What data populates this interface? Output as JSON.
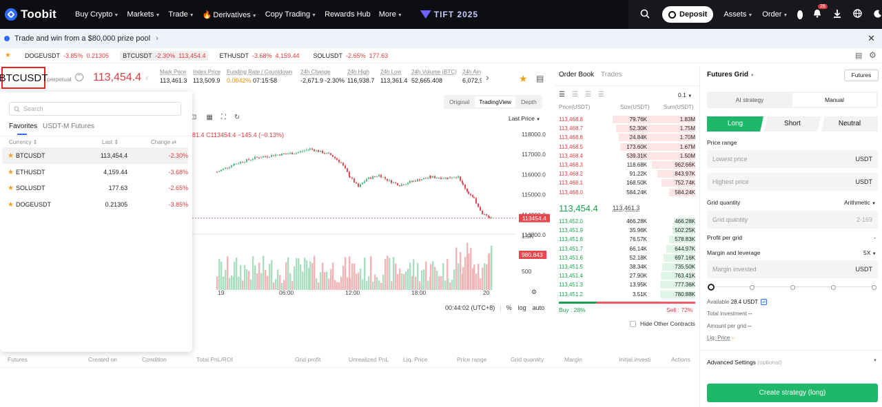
{
  "nav": {
    "logo": "Toobit",
    "items": [
      "Buy Crypto",
      "Markets",
      "Trade",
      "Derivatives",
      "Copy Trading",
      "Rewards Hub",
      "More"
    ],
    "event": "TIFT 2025",
    "deposit": "Deposit",
    "assets": "Assets",
    "order": "Order",
    "notif_count": "26"
  },
  "banner": {
    "text": "Trade and win from a $80,000 prize pool"
  },
  "ticker": [
    {
      "sym": "DOGEUSDT",
      "chg": "-3.85%",
      "price": "0.21305"
    },
    {
      "sym": "BTCUSDT",
      "chg": "-2.30%",
      "price": "113,454.4"
    },
    {
      "sym": "ETHUSDT",
      "chg": "-3.68%",
      "price": "4,159.44"
    },
    {
      "sym": "SOLUSDT",
      "chg": "-2.65%",
      "price": "177.63"
    }
  ],
  "symbol": {
    "name": "BTCUSDT",
    "kind": "perpetual",
    "price": "113,454.4",
    "stats": [
      {
        "label": "Mark Price",
        "value": "113,461.3"
      },
      {
        "label": "Index Price",
        "value": "113,509.9"
      },
      {
        "label": "Funding Rate / Countdown",
        "value": "0.0042%",
        "value2": "07:15:58"
      },
      {
        "label": "24h Change",
        "value": "-2,671.9 -2.30%"
      },
      {
        "label": "24h High",
        "value": "116,938.7"
      },
      {
        "label": "24h Low",
        "value": "113,361.4"
      },
      {
        "label": "24h Volume (BTC)",
        "value": "52,665.408"
      },
      {
        "label": "24h Am",
        "value": "6,072,9"
      }
    ]
  },
  "dropdown": {
    "placeholder": "Search",
    "tabs": [
      "Favorites",
      "USDT-M Futures"
    ],
    "headers": {
      "currency": "Currency",
      "last": "Last",
      "change": "Change"
    },
    "rows": [
      {
        "sym": "BTCUSDT",
        "last": "113,454.4",
        "chg": "-2.30%"
      },
      {
        "sym": "ETHUSDT",
        "last": "4,159.44",
        "chg": "-3.68%"
      },
      {
        "sym": "SOLUSDT",
        "last": "177.63",
        "chg": "-2.65%"
      },
      {
        "sym": "DOGEUSDT",
        "last": "0.21305",
        "chg": "-3.85%"
      }
    ]
  },
  "chart": {
    "views": [
      "Original",
      "TradingView",
      "Depth"
    ],
    "active_view": "TradingView",
    "price_type": "Last Price",
    "ohlc_text": "81.4  C113454.4  −145.4 (−0.13%)",
    "y_ticks": [
      "118000.0",
      "117000.0",
      "116000.0",
      "115000.0",
      "114000.0",
      "113000.0"
    ],
    "last_tag": "113454.4",
    "vol_ticks": [
      "1.5K",
      "500"
    ],
    "vol_tag": "980.843",
    "x_ticks": [
      "19",
      "06:00",
      "12:00",
      "18:00",
      "20"
    ],
    "clock": "00:44:02 (UTC+8)",
    "opts": [
      "%",
      "log",
      "auto"
    ],
    "hide_other": "Hide Other Contracts"
  },
  "orderbook": {
    "tabs": [
      "Order Book",
      "Trades"
    ],
    "tick": "0.1",
    "headers": {
      "price": "Price(USDT)",
      "size": "Size(USDT)",
      "sum": "Sum(USDT)"
    },
    "asks": [
      {
        "p": "113,468.8",
        "s": "79.76K",
        "t": "1.83M"
      },
      {
        "p": "113,468.7",
        "s": "52.30K",
        "t": "1.75M"
      },
      {
        "p": "113,468.6",
        "s": "24.84K",
        "t": "1.70M"
      },
      {
        "p": "113,468.5",
        "s": "173.60K",
        "t": "1.67M"
      },
      {
        "p": "113,468.4",
        "s": "539.31K",
        "t": "1.50M"
      },
      {
        "p": "113,468.3",
        "s": "118.68K",
        "t": "962.66K"
      },
      {
        "p": "113,468.2",
        "s": "91.22K",
        "t": "843.97K"
      },
      {
        "p": "113,468.1",
        "s": "168.50K",
        "t": "752.74K"
      },
      {
        "p": "113,468.0",
        "s": "584.24K",
        "t": "584.24K"
      }
    ],
    "mid": "113,454.4",
    "mark": "113,461.3",
    "bids": [
      {
        "p": "113,452.0",
        "s": "466.28K",
        "t": "466.28K"
      },
      {
        "p": "113,451.9",
        "s": "35.96K",
        "t": "502.25K"
      },
      {
        "p": "113,451.8",
        "s": "76.57K",
        "t": "578.83K"
      },
      {
        "p": "113,451.7",
        "s": "66.14K",
        "t": "644.97K"
      },
      {
        "p": "113,451.6",
        "s": "52.18K",
        "t": "697.16K"
      },
      {
        "p": "113,451.5",
        "s": "38.34K",
        "t": "735.50K"
      },
      {
        "p": "113,451.4",
        "s": "27.90K",
        "t": "763.41K"
      },
      {
        "p": "113,451.3",
        "s": "13.95K",
        "t": "777.36K"
      },
      {
        "p": "113,451.2",
        "s": "3.51K",
        "t": "780.88K"
      }
    ],
    "buy": "Buy : 28%",
    "sell": "Sell : 72%",
    "buy_frac": 0.28
  },
  "grid": {
    "title": "Futures Grid",
    "futures_btn": "Futures",
    "modes": [
      "AI strategy",
      "Manual"
    ],
    "sides": [
      "Long",
      "Short",
      "Neutral"
    ],
    "price_range": "Price range",
    "lowest": "Lowest price",
    "highest": "Highest price",
    "unit": "USDT",
    "grid_qty": "Grid quantity",
    "arith": "Arithmetic",
    "grid_ph": "Grid quantity",
    "grid_range": "2-169",
    "profit": "Profit per grid",
    "profit_v": "-",
    "margin": "Margin and leverage",
    "lev": "5X",
    "margin_ph": "Margin invested",
    "available_label": "Available",
    "available": "28.4 USDT",
    "total_inv": "Total investment",
    "amount_grid": "Amount per grid",
    "liq": "Liq. Price",
    "dash": "--",
    "advanced": "Advanced Settings",
    "optional": "(optional)",
    "create": "Create strategy (long)"
  },
  "positions": {
    "cols": [
      "Futures",
      "Created on",
      "Condition",
      "Total PnL/ROI",
      "Grid profit",
      "Unrealized PnL",
      "Liq. Price",
      "Price range",
      "Grid quantity",
      "Margin",
      "Initial investi",
      "Actions"
    ]
  },
  "colors": {
    "up": "#16a34a",
    "down": "#e03a3e",
    "accent": "#1fb86b",
    "nav": "#0c0e12"
  }
}
